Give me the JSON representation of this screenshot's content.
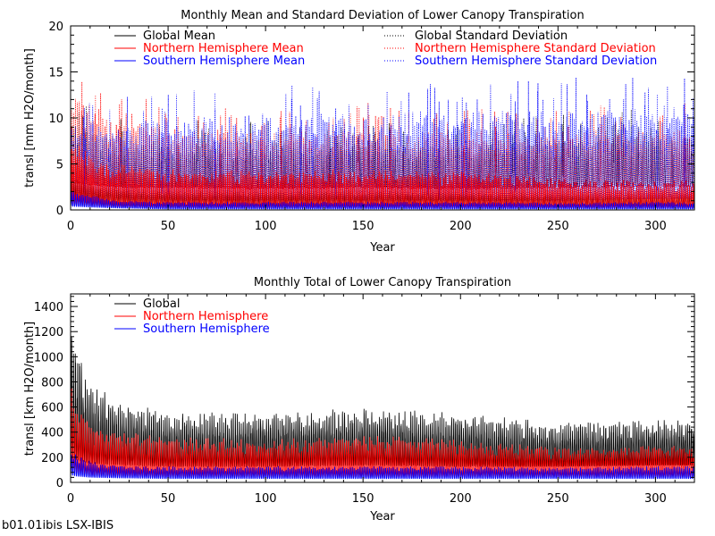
{
  "footer": "b01.01ibis LSX-IBIS",
  "chart_data": [
    {
      "type": "line",
      "title": "Monthly Mean and Standard Deviation of Lower Canopy Transpiration",
      "xlabel": "Year",
      "ylabel": "transl [mm H2O/month]",
      "xlim": [
        0,
        320
      ],
      "ylim": [
        0,
        20
      ],
      "x_ticks": [
        0,
        50,
        100,
        150,
        200,
        250,
        300
      ],
      "y_ticks": [
        0,
        5,
        10,
        15,
        20
      ],
      "grid": false,
      "legend_placement": "top",
      "colors": {
        "global": "#000000",
        "north": "#ff0000",
        "south": "#0000ff"
      },
      "series": [
        {
          "name": "Global Mean",
          "color": "#000000",
          "style": "solid",
          "x": [
            0,
            10,
            25,
            50,
            100,
            150,
            200,
            250,
            300,
            320
          ],
          "low": [
            0.8,
            0.6,
            0.5,
            0.4,
            0.4,
            0.4,
            0.4,
            0.4,
            0.4,
            0.4
          ],
          "high": [
            4.0,
            3.2,
            2.6,
            2.3,
            2.2,
            2.3,
            2.2,
            2.0,
            2.1,
            2.0
          ]
        },
        {
          "name": "Northern Hemisphere Mean",
          "color": "#ff0000",
          "style": "solid",
          "x": [
            0,
            10,
            25,
            50,
            100,
            150,
            200,
            250,
            300,
            320
          ],
          "low": [
            0.5,
            0.4,
            0.3,
            0.2,
            0.2,
            0.2,
            0.2,
            0.2,
            0.2,
            0.2
          ],
          "high": [
            8.0,
            6.0,
            5.0,
            4.5,
            4.3,
            4.4,
            4.2,
            3.5,
            3.2,
            3.3
          ]
        },
        {
          "name": "Southern Hemisphere Mean",
          "color": "#0000ff",
          "style": "solid",
          "x": [
            0,
            10,
            25,
            50,
            100,
            150,
            200,
            250,
            300,
            320
          ],
          "low": [
            0.4,
            0.3,
            0.2,
            0.1,
            0.1,
            0.1,
            0.1,
            0.1,
            0.1,
            0.1
          ],
          "high": [
            2.2,
            1.6,
            1.0,
            0.9,
            0.9,
            0.9,
            0.9,
            0.8,
            0.9,
            0.8
          ]
        },
        {
          "name": "Global Standard Deviation",
          "color": "#000000",
          "style": "dotted",
          "x": [
            0,
            10,
            25,
            50,
            100,
            150,
            200,
            250,
            300,
            320
          ],
          "low": [
            3.0,
            2.8,
            2.5,
            2.5,
            2.4,
            2.5,
            2.4,
            2.5,
            2.6,
            2.6
          ],
          "high": [
            10.0,
            9.0,
            8.0,
            7.5,
            7.5,
            7.5,
            7.5,
            8.0,
            8.5,
            8.5
          ]
        },
        {
          "name": "Northern Hemisphere Standard Deviation",
          "color": "#ff0000",
          "style": "dotted",
          "x": [
            0,
            10,
            25,
            50,
            100,
            150,
            200,
            250,
            300,
            320
          ],
          "low": [
            3.0,
            2.7,
            2.5,
            2.4,
            2.3,
            2.4,
            2.3,
            2.4,
            2.5,
            2.5
          ],
          "high": [
            13.0,
            11.5,
            10.0,
            9.0,
            8.5,
            9.0,
            8.5,
            8.5,
            9.0,
            9.0
          ]
        },
        {
          "name": "Southern Hemisphere Standard Deviation",
          "color": "#0000ff",
          "style": "dotted",
          "x": [
            0,
            10,
            25,
            50,
            100,
            150,
            200,
            250,
            300,
            320
          ],
          "low": [
            1.5,
            1.3,
            1.0,
            1.0,
            1.0,
            1.0,
            1.0,
            1.0,
            1.2,
            1.2
          ],
          "high": [
            9.0,
            9.5,
            9.5,
            10.0,
            10.5,
            10.5,
            11.0,
            11.0,
            11.5,
            11.5
          ]
        }
      ]
    },
    {
      "type": "line",
      "title": "Monthly Total of Lower Canopy Transpiration",
      "xlabel": "Year",
      "ylabel": "transl [km H2O/month]",
      "xlim": [
        0,
        320
      ],
      "ylim": [
        0,
        1500
      ],
      "x_ticks": [
        0,
        50,
        100,
        150,
        200,
        250,
        300
      ],
      "y_ticks": [
        0,
        200,
        400,
        600,
        800,
        1000,
        1200,
        1400
      ],
      "grid": false,
      "legend_placement": "top-left",
      "series": [
        {
          "name": "Global",
          "color": "#000000",
          "style": "solid",
          "x": [
            0,
            3,
            10,
            25,
            50,
            100,
            150,
            200,
            250,
            300,
            320
          ],
          "low": [
            200,
            180,
            150,
            140,
            130,
            130,
            140,
            130,
            130,
            140,
            140
          ],
          "high": [
            1250,
            1100,
            800,
            650,
            560,
            560,
            600,
            550,
            480,
            500,
            500
          ]
        },
        {
          "name": "Northern Hemisphere",
          "color": "#ff0000",
          "style": "solid",
          "x": [
            0,
            3,
            10,
            25,
            50,
            100,
            150,
            200,
            250,
            300,
            320
          ],
          "low": [
            80,
            70,
            55,
            50,
            45,
            45,
            45,
            45,
            45,
            45,
            45
          ],
          "high": [
            780,
            620,
            480,
            420,
            360,
            350,
            380,
            340,
            280,
            300,
            300
          ]
        },
        {
          "name": "Southern Hemisphere",
          "color": "#0000ff",
          "style": "solid",
          "x": [
            0,
            3,
            10,
            25,
            50,
            100,
            150,
            200,
            250,
            300,
            320
          ],
          "low": [
            60,
            50,
            40,
            35,
            30,
            30,
            30,
            30,
            30,
            30,
            30
          ],
          "high": [
            330,
            230,
            170,
            140,
            130,
            130,
            130,
            130,
            120,
            130,
            130
          ]
        }
      ]
    }
  ]
}
